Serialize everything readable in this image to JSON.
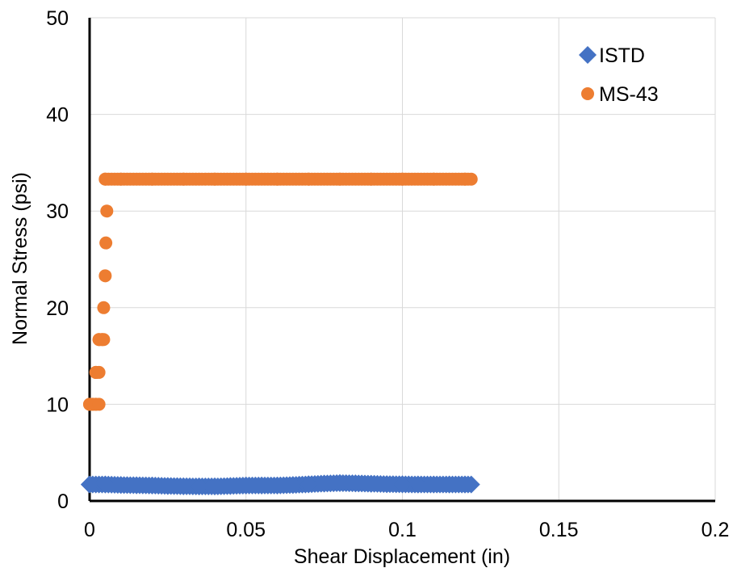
{
  "chart_data": {
    "type": "scatter",
    "title": "",
    "xlabel": "Shear Displacement (in)",
    "ylabel": "Normal Stress (psi)",
    "xlim": [
      0,
      0.2
    ],
    "ylim": [
      0,
      50
    ],
    "x_ticks": [
      "0",
      "0.05",
      "0.1",
      "0.15",
      "0.2"
    ],
    "y_ticks": [
      "0",
      "10",
      "20",
      "30",
      "40",
      "50"
    ],
    "grid": true,
    "legend_position": "top-right",
    "series": [
      {
        "name": "ISTD",
        "color": "#4472c4",
        "marker": "diamond",
        "points": [
          [
            0.0,
            1.7
          ],
          [
            0.005,
            1.7
          ],
          [
            0.01,
            1.65
          ],
          [
            0.015,
            1.62
          ],
          [
            0.02,
            1.6
          ],
          [
            0.025,
            1.55
          ],
          [
            0.03,
            1.52
          ],
          [
            0.035,
            1.5
          ],
          [
            0.04,
            1.5
          ],
          [
            0.045,
            1.55
          ],
          [
            0.05,
            1.6
          ],
          [
            0.055,
            1.6
          ],
          [
            0.06,
            1.6
          ],
          [
            0.065,
            1.65
          ],
          [
            0.07,
            1.72
          ],
          [
            0.075,
            1.8
          ],
          [
            0.08,
            1.85
          ],
          [
            0.085,
            1.82
          ],
          [
            0.09,
            1.78
          ],
          [
            0.095,
            1.74
          ],
          [
            0.1,
            1.72
          ],
          [
            0.105,
            1.7
          ],
          [
            0.11,
            1.7
          ],
          [
            0.115,
            1.7
          ],
          [
            0.12,
            1.7
          ],
          [
            0.122,
            1.7
          ]
        ]
      },
      {
        "name": "MS-43",
        "color": "#ed7d31",
        "marker": "circle",
        "points": [
          [
            0.0,
            10.0
          ],
          [
            0.001,
            10.0
          ],
          [
            0.002,
            10.0
          ],
          [
            0.003,
            10.0
          ],
          [
            0.002,
            13.3
          ],
          [
            0.003,
            13.3
          ],
          [
            0.003,
            16.7
          ],
          [
            0.004,
            16.7
          ],
          [
            0.0045,
            16.7
          ],
          [
            0.0045,
            20.0
          ],
          [
            0.005,
            23.3
          ],
          [
            0.0052,
            26.7
          ],
          [
            0.0055,
            30.0
          ],
          [
            0.005,
            33.3
          ],
          [
            0.01,
            33.3
          ],
          [
            0.02,
            33.3
          ],
          [
            0.03,
            33.3
          ],
          [
            0.04,
            33.3
          ],
          [
            0.05,
            33.3
          ],
          [
            0.06,
            33.3
          ],
          [
            0.07,
            33.3
          ],
          [
            0.08,
            33.3
          ],
          [
            0.09,
            33.3
          ],
          [
            0.1,
            33.3
          ],
          [
            0.11,
            33.3
          ],
          [
            0.12,
            33.3
          ],
          [
            0.122,
            33.3
          ]
        ]
      }
    ]
  }
}
